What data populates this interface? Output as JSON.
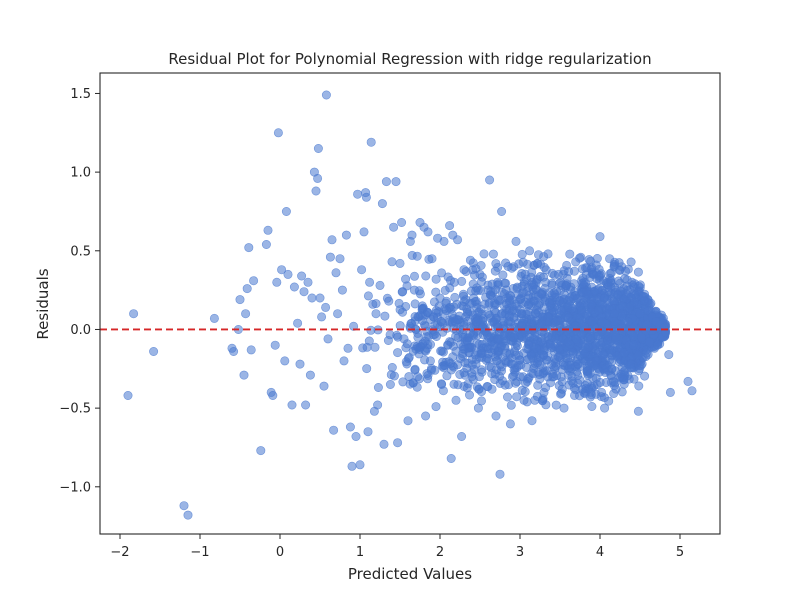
{
  "chart_data": {
    "type": "scatter",
    "title": "Residual Plot for Polynomial Regression with ridge regularization",
    "xlabel": "Predicted Values",
    "ylabel": "Residuals",
    "xlim": [
      -2.25,
      5.5
    ],
    "ylim": [
      -1.3,
      1.63
    ],
    "xticks": [
      -2,
      -1,
      0,
      1,
      2,
      3,
      4,
      5
    ],
    "xtick_labels": [
      "−2",
      "−1",
      "0",
      "1",
      "2",
      "3",
      "4",
      "5"
    ],
    "yticks": [
      -1.0,
      -0.5,
      0.0,
      0.5,
      1.0,
      1.5
    ],
    "ytick_labels": [
      "−1.0",
      "−0.5",
      "0.0",
      "0.5",
      "1.0",
      "1.5"
    ],
    "grid": false,
    "point_color": "#4878cf",
    "point_opacity": 0.55,
    "reference_line": {
      "y": 0.0,
      "color": "#d62728",
      "style": "dashed"
    },
    "points": [
      [
        -1.9,
        -0.42
      ],
      [
        -1.83,
        0.1
      ],
      [
        -1.58,
        -0.14
      ],
      [
        -1.2,
        -1.12
      ],
      [
        -1.15,
        -1.18
      ],
      [
        -0.82,
        0.07
      ],
      [
        -0.6,
        -0.12
      ],
      [
        -0.58,
        -0.14
      ],
      [
        -0.52,
        0.0
      ],
      [
        -0.5,
        0.19
      ],
      [
        -0.45,
        -0.29
      ],
      [
        -0.43,
        0.1
      ],
      [
        -0.41,
        0.26
      ],
      [
        -0.39,
        0.52
      ],
      [
        -0.36,
        -0.13
      ],
      [
        -0.33,
        0.31
      ],
      [
        -0.24,
        -0.77
      ],
      [
        -0.17,
        0.54
      ],
      [
        -0.15,
        0.63
      ],
      [
        -0.11,
        -0.4
      ],
      [
        -0.09,
        -0.42
      ],
      [
        -0.06,
        -0.1
      ],
      [
        -0.04,
        0.3
      ],
      [
        -0.02,
        1.25
      ],
      [
        0.02,
        0.38
      ],
      [
        0.06,
        -0.2
      ],
      [
        0.08,
        0.75
      ],
      [
        0.1,
        0.35
      ],
      [
        0.15,
        -0.48
      ],
      [
        0.18,
        0.27
      ],
      [
        0.22,
        0.04
      ],
      [
        0.25,
        -0.22
      ],
      [
        0.27,
        0.34
      ],
      [
        0.3,
        0.24
      ],
      [
        0.32,
        -0.48
      ],
      [
        0.35,
        0.3
      ],
      [
        0.38,
        -0.29
      ],
      [
        0.4,
        0.2
      ],
      [
        0.43,
        1.0
      ],
      [
        0.45,
        0.88
      ],
      [
        0.47,
        0.96
      ],
      [
        0.48,
        1.15
      ],
      [
        0.5,
        0.2
      ],
      [
        0.52,
        0.08
      ],
      [
        0.55,
        -0.36
      ],
      [
        0.57,
        0.14
      ],
      [
        0.58,
        1.49
      ],
      [
        0.6,
        -0.06
      ],
      [
        0.63,
        0.46
      ],
      [
        0.65,
        0.57
      ],
      [
        0.67,
        -0.64
      ],
      [
        0.7,
        0.36
      ],
      [
        0.72,
        0.1
      ],
      [
        0.75,
        0.45
      ],
      [
        0.78,
        0.25
      ],
      [
        0.8,
        -0.2
      ],
      [
        0.83,
        0.6
      ],
      [
        0.85,
        -0.12
      ],
      [
        0.88,
        -0.62
      ],
      [
        0.9,
        -0.87
      ],
      [
        0.92,
        0.02
      ],
      [
        0.95,
        -0.68
      ],
      [
        0.97,
        0.86
      ],
      [
        1.0,
        -0.86
      ],
      [
        1.02,
        0.38
      ],
      [
        1.05,
        0.62
      ],
      [
        1.07,
        0.87
      ],
      [
        1.08,
        0.84
      ],
      [
        1.1,
        -0.65
      ],
      [
        1.12,
        0.3
      ],
      [
        1.14,
        1.19
      ],
      [
        1.16,
        0.16
      ],
      [
        1.18,
        -0.52
      ],
      [
        1.2,
        0.1
      ],
      [
        1.22,
        -0.48
      ],
      [
        1.25,
        0.28
      ],
      [
        1.28,
        0.8
      ],
      [
        1.3,
        -0.73
      ],
      [
        1.33,
        0.94
      ],
      [
        1.36,
        0.18
      ],
      [
        1.38,
        -0.35
      ],
      [
        1.4,
        0.43
      ],
      [
        1.42,
        0.65
      ],
      [
        1.45,
        0.94
      ],
      [
        1.47,
        -0.72
      ],
      [
        1.5,
        0.42
      ],
      [
        1.52,
        0.68
      ],
      [
        1.55,
        -0.06
      ],
      [
        1.57,
        0.32
      ],
      [
        1.6,
        -0.58
      ],
      [
        1.63,
        0.56
      ],
      [
        1.65,
        0.6
      ],
      [
        1.68,
        0.25
      ],
      [
        1.7,
        0.0
      ],
      [
        1.72,
        -0.3
      ],
      [
        1.75,
        0.68
      ],
      [
        1.78,
        0.15
      ],
      [
        1.8,
        0.65
      ],
      [
        1.82,
        -0.55
      ],
      [
        1.85,
        0.62
      ],
      [
        1.88,
        -0.2
      ],
      [
        1.9,
        0.45
      ],
      [
        1.92,
        0.08
      ],
      [
        1.95,
        -0.49
      ],
      [
        1.97,
        0.58
      ],
      [
        2.0,
        0.2
      ],
      [
        2.02,
        -0.35
      ],
      [
        2.05,
        0.56
      ],
      [
        2.08,
        0.12
      ],
      [
        2.1,
        -0.1
      ],
      [
        2.12,
        0.66
      ],
      [
        2.14,
        -0.82
      ],
      [
        2.16,
        0.6
      ],
      [
        2.18,
        0.3
      ],
      [
        2.2,
        -0.45
      ],
      [
        2.22,
        0.57
      ],
      [
        2.25,
        0.0
      ],
      [
        2.27,
        -0.68
      ],
      [
        2.3,
        0.38
      ],
      [
        2.32,
        0.08
      ],
      [
        2.35,
        -0.12
      ],
      [
        2.38,
        0.44
      ],
      [
        2.4,
        -0.3
      ],
      [
        2.42,
        0.2
      ],
      [
        2.45,
        0.05
      ],
      [
        2.48,
        -0.5
      ],
      [
        2.5,
        0.35
      ],
      [
        2.52,
        -0.15
      ],
      [
        2.55,
        0.48
      ],
      [
        2.58,
        -0.02
      ],
      [
        2.6,
        0.25
      ],
      [
        2.62,
        0.95
      ],
      [
        2.65,
        -0.38
      ],
      [
        2.68,
        0.12
      ],
      [
        2.7,
        -0.55
      ],
      [
        2.72,
        0.3
      ],
      [
        2.75,
        -0.92
      ],
      [
        2.77,
        0.75
      ],
      [
        2.8,
        0.05
      ],
      [
        2.82,
        -0.2
      ],
      [
        2.85,
        0.4
      ],
      [
        2.88,
        -0.6
      ],
      [
        2.9,
        0.15
      ],
      [
        2.92,
        -0.05
      ],
      [
        2.95,
        0.56
      ],
      [
        2.98,
        0.22
      ],
      [
        3.0,
        -0.3
      ],
      [
        3.02,
        0.1
      ],
      [
        3.05,
        -0.45
      ],
      [
        3.08,
        0.32
      ],
      [
        3.1,
        0.0
      ],
      [
        3.12,
        0.5
      ],
      [
        3.15,
        -0.58
      ],
      [
        3.18,
        0.18
      ],
      [
        3.2,
        -0.12
      ],
      [
        3.22,
        0.42
      ],
      [
        3.25,
        -0.22
      ],
      [
        3.28,
        0.08
      ],
      [
        3.3,
        -0.4
      ],
      [
        3.32,
        0.3
      ],
      [
        3.35,
        0.48
      ],
      [
        3.38,
        -0.1
      ],
      [
        3.4,
        0.22
      ],
      [
        3.42,
        -0.3
      ],
      [
        3.45,
        0.05
      ],
      [
        3.48,
        0.35
      ],
      [
        3.5,
        -0.18
      ],
      [
        3.52,
        0.12
      ],
      [
        3.55,
        -0.5
      ],
      [
        3.58,
        0.28
      ],
      [
        3.6,
        -0.08
      ],
      [
        3.62,
        0.2
      ],
      [
        3.65,
        -0.3
      ],
      [
        3.68,
        0.37
      ],
      [
        3.7,
        0.0
      ],
      [
        3.72,
        -0.22
      ],
      [
        3.75,
        0.15
      ],
      [
        3.78,
        -0.38
      ],
      [
        3.8,
        0.3
      ],
      [
        3.82,
        -0.12
      ],
      [
        3.85,
        0.22
      ],
      [
        3.88,
        -0.28
      ],
      [
        3.9,
        0.05
      ],
      [
        3.92,
        0.35
      ],
      [
        3.95,
        -0.2
      ],
      [
        3.98,
        0.12
      ],
      [
        4.0,
        0.59
      ],
      [
        4.02,
        -0.4
      ],
      [
        4.05,
        0.2
      ],
      [
        4.08,
        -0.1
      ],
      [
        4.1,
        0.3
      ],
      [
        4.12,
        0.45
      ],
      [
        4.15,
        -0.25
      ],
      [
        4.18,
        0.1
      ],
      [
        4.2,
        -0.05
      ],
      [
        4.22,
        0.22
      ],
      [
        4.25,
        -0.3
      ],
      [
        4.28,
        0.15
      ],
      [
        4.3,
        -0.15
      ],
      [
        4.32,
        0.37
      ],
      [
        4.35,
        0.05
      ],
      [
        4.38,
        -0.22
      ],
      [
        4.4,
        0.3
      ],
      [
        4.42,
        -0.1
      ],
      [
        4.45,
        0.2
      ],
      [
        4.48,
        -0.52
      ],
      [
        4.5,
        0.1
      ],
      [
        4.52,
        -0.05
      ],
      [
        4.55,
        0.18
      ],
      [
        4.58,
        -0.15
      ],
      [
        4.6,
        0.12
      ],
      [
        4.62,
        -0.08
      ],
      [
        4.65,
        0.08
      ],
      [
        4.68,
        -0.12
      ],
      [
        4.7,
        0.05
      ],
      [
        4.72,
        -0.1
      ],
      [
        4.75,
        0.03
      ],
      [
        4.78,
        -0.05
      ],
      [
        4.8,
        0.01
      ],
      [
        4.82,
        -0.02
      ],
      [
        4.86,
        -0.16
      ],
      [
        4.88,
        -0.4
      ],
      [
        5.1,
        -0.33
      ],
      [
        5.15,
        -0.39
      ]
    ],
    "cloud": {
      "seed": 7,
      "count": 2100,
      "x_range": [
        1.0,
        4.82
      ],
      "spread_note": "dense mass of residuals roughly within -0.45..0.45, tapering to ~0 near x=4.8"
    }
  }
}
